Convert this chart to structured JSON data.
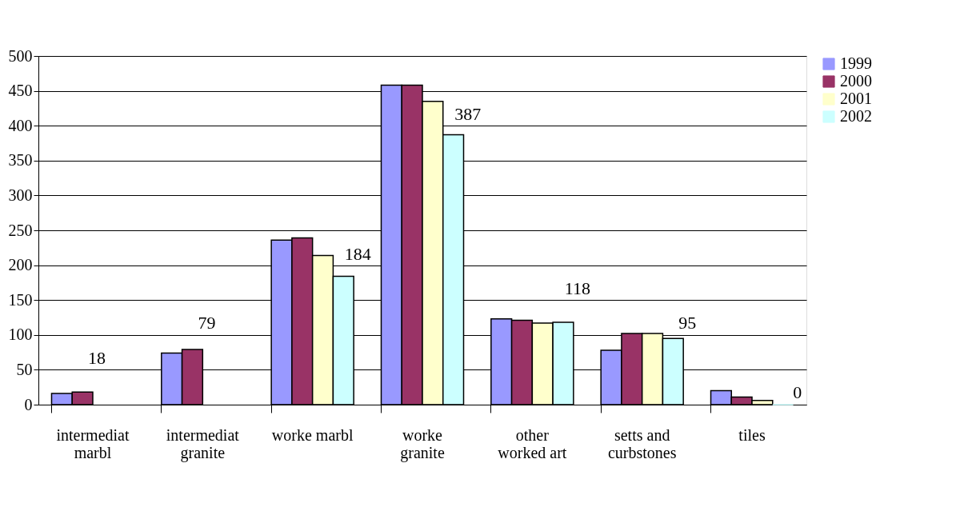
{
  "chart_data": {
    "type": "bar",
    "categories": [
      "intermediat marbl",
      "intermediat granite",
      "worke marbl",
      "worke granite",
      "other worked art",
      "setts and curbstones",
      "tiles"
    ],
    "series": [
      {
        "name": "1999",
        "color": "#9999ff",
        "values": [
          16,
          74,
          236,
          458,
          123,
          78,
          20
        ]
      },
      {
        "name": "2000",
        "color": "#993366",
        "values": [
          18,
          79,
          239,
          458,
          121,
          102,
          11
        ],
        "value_labels": [
          "18",
          "79",
          null,
          null,
          null,
          null,
          null
        ]
      },
      {
        "name": "2001",
        "color": "#ffffcc",
        "values": [
          null,
          null,
          214,
          435,
          117,
          102,
          6
        ]
      },
      {
        "name": "2002",
        "color": "#ccffff",
        "values": [
          null,
          null,
          184,
          387,
          118,
          95,
          0
        ],
        "value_labels": [
          null,
          null,
          "184",
          "387",
          "118",
          "95",
          "0"
        ]
      }
    ],
    "ylim": [
      0,
      500
    ],
    "yticks": [
      0,
      50,
      100,
      150,
      200,
      250,
      300,
      350,
      400,
      450,
      500
    ],
    "grid": "y",
    "legend": "right"
  }
}
